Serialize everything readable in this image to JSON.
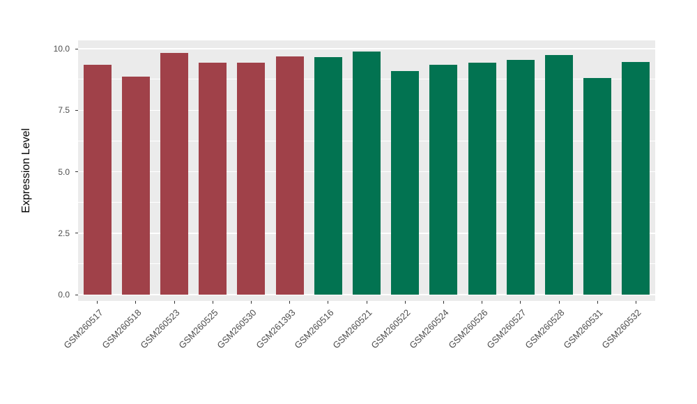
{
  "chart_data": {
    "type": "bar",
    "title": "",
    "xlabel": "",
    "ylabel": "Expression Level",
    "ylim": [
      0,
      10.34
    ],
    "yticks": [
      0,
      2.5,
      5,
      7.5,
      10
    ],
    "ytick_labels": [
      "0.0",
      "2.5",
      "5.0",
      "7.5",
      "10.0"
    ],
    "minor_yticks": [
      1.25,
      3.75,
      6.25,
      8.75
    ],
    "categories": [
      "GSM260517",
      "GSM260518",
      "GSM260523",
      "GSM260525",
      "GSM260530",
      "GSM261393",
      "GSM260516",
      "GSM260521",
      "GSM260522",
      "GSM260524",
      "GSM260526",
      "GSM260527",
      "GSM260528",
      "GSM260531",
      "GSM260532"
    ],
    "values": [
      9.35,
      8.87,
      9.82,
      9.42,
      9.42,
      9.68,
      9.65,
      9.88,
      9.1,
      9.36,
      9.42,
      9.56,
      9.74,
      8.8,
      9.45
    ],
    "groups": [
      "red",
      "red",
      "red",
      "red",
      "red",
      "red",
      "green",
      "green",
      "green",
      "green",
      "green",
      "green",
      "green",
      "green",
      "green"
    ],
    "colors": {
      "red": "#A04149",
      "green": "#027351"
    },
    "panel_background": "#EBEBEB",
    "grid_color": "#FFFFFF",
    "grid": true,
    "legend": "none"
  }
}
